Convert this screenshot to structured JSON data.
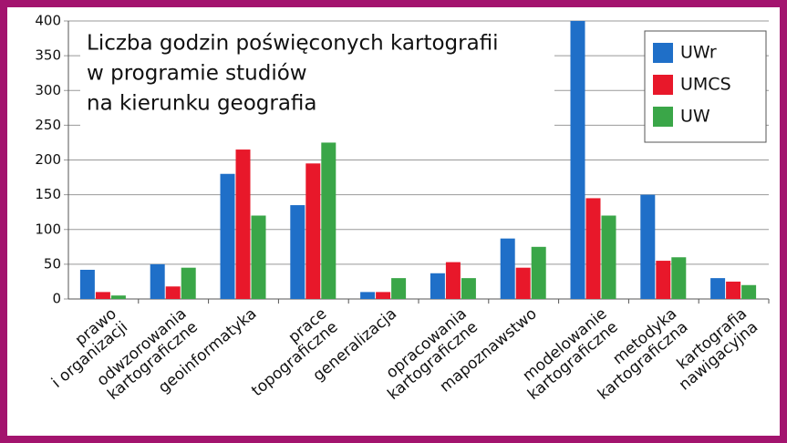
{
  "chart_data": {
    "type": "bar",
    "title": [
      "Liczba godzin poświęconych kartografii",
      "w programie studiów",
      "na kierunku geografia"
    ],
    "categories": [
      [
        "prawo",
        "i organizacji"
      ],
      [
        "odwzorowania",
        "kartograficzne"
      ],
      [
        "geoinformatyka"
      ],
      [
        "prace",
        "topograficzne"
      ],
      [
        "generalizacja"
      ],
      [
        "opracowania",
        "kartograficzne"
      ],
      [
        "mapoznawstwo"
      ],
      [
        "modelowanie",
        "kartograficzne"
      ],
      [
        "metodyka",
        "kartograficzna"
      ],
      [
        "kartografia",
        "nawigacyjna"
      ]
    ],
    "series": [
      {
        "name": "UWr",
        "color": "#1f6fc8",
        "values": [
          42,
          50,
          180,
          135,
          10,
          37,
          87,
          400,
          150,
          30
        ]
      },
      {
        "name": "UMCS",
        "color": "#e8182a",
        "values": [
          10,
          18,
          215,
          195,
          10,
          53,
          45,
          145,
          55,
          25
        ]
      },
      {
        "name": "UW",
        "color": "#3aa648",
        "values": [
          5,
          45,
          120,
          225,
          30,
          30,
          75,
          120,
          60,
          20
        ]
      }
    ],
    "ylim": [
      0,
      400
    ],
    "yticks": [
      0,
      50,
      100,
      150,
      200,
      250,
      300,
      350,
      400
    ],
    "grid": true
  }
}
